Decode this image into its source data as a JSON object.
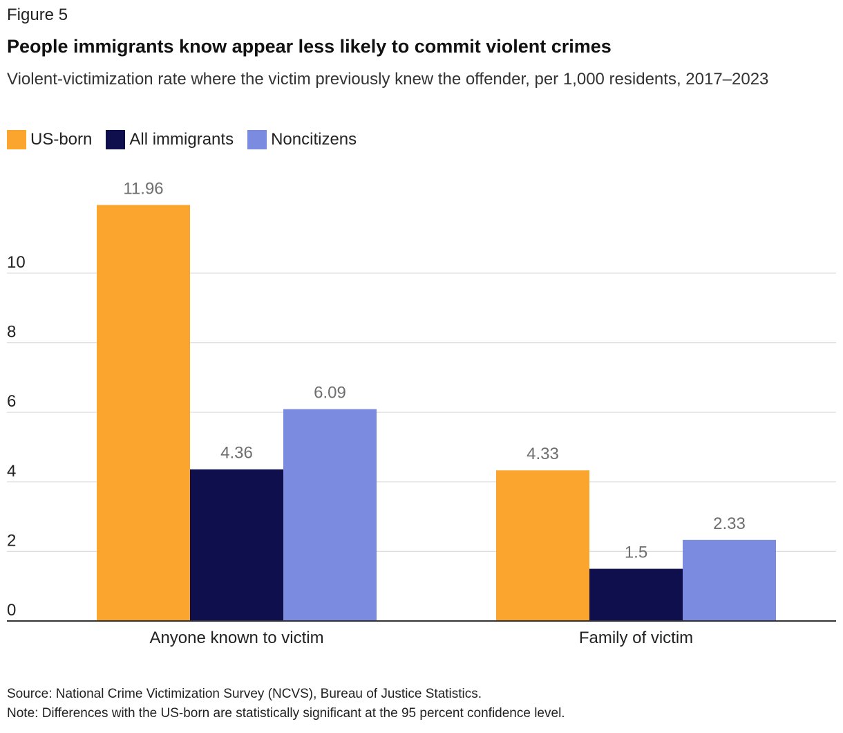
{
  "figure_label": "Figure 5",
  "chart_data": {
    "type": "bar",
    "title": "People immigrants know appear less likely to commit violent crimes",
    "subtitle": "Violent-victimization rate where the victim previously knew the offender, per 1,000 residents, 2017–2023",
    "categories": [
      "Anyone known to victim",
      "Family of victim"
    ],
    "series": [
      {
        "name": "US-born",
        "color": "#FBA52E",
        "values": [
          11.96,
          4.33
        ],
        "labels": [
          "11.96",
          "4.33"
        ]
      },
      {
        "name": "All immigrants",
        "color": "#0F0F4D",
        "values": [
          4.36,
          1.5
        ],
        "labels": [
          "4.36",
          "1.5"
        ]
      },
      {
        "name": "Noncitizens",
        "color": "#7B8BDF",
        "values": [
          6.09,
          2.33
        ],
        "labels": [
          "6.09",
          "2.33"
        ]
      }
    ],
    "yticks": [
      0,
      2,
      4,
      6,
      8,
      10
    ],
    "ylim": [
      0,
      12
    ],
    "xlabel": "",
    "ylabel": "",
    "grid": true,
    "legend_position": "top-left"
  },
  "footer": {
    "source": "Source: National Crime Victimization Survey (NCVS), Bureau of Justice Statistics.",
    "note": "Note: Differences with the US-born are statistically significant at the 95 percent confidence level."
  }
}
